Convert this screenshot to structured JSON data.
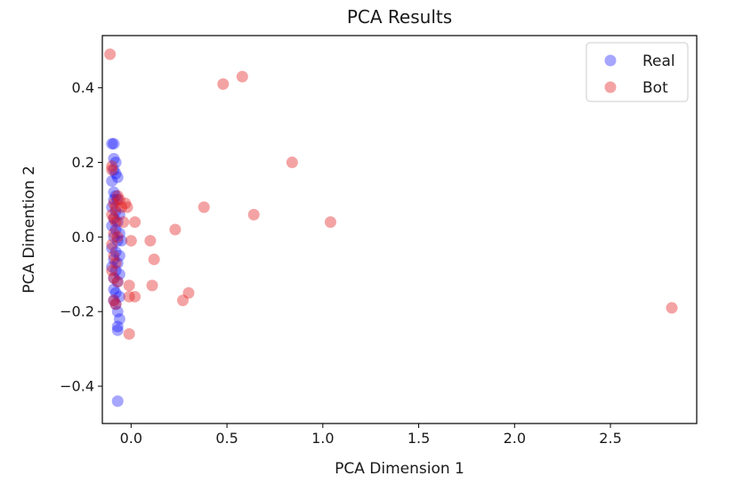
{
  "chart_data": {
    "type": "scatter",
    "title": "PCA Results",
    "xlabel": "PCA Dimension 1",
    "ylabel": "PCA Dimention 2",
    "xlim": [
      -0.15,
      2.95
    ],
    "ylim": [
      -0.5,
      0.54
    ],
    "xticks": [
      {
        "value": 0.0,
        "label": "0.0"
      },
      {
        "value": 0.5,
        "label": "0.5"
      },
      {
        "value": 1.0,
        "label": "1.0"
      },
      {
        "value": 1.5,
        "label": "1.5"
      },
      {
        "value": 2.0,
        "label": "2.0"
      },
      {
        "value": 2.5,
        "label": "2.5"
      }
    ],
    "yticks": [
      {
        "value": -0.4,
        "label": "−0.4"
      },
      {
        "value": -0.2,
        "label": "−0.2"
      },
      {
        "value": 0.0,
        "label": "0.0"
      },
      {
        "value": 0.2,
        "label": "0.2"
      },
      {
        "value": 0.4,
        "label": "0.4"
      }
    ],
    "grid": false,
    "legend_position": "top-right",
    "series": [
      {
        "name": "Real",
        "color": "#0000ff",
        "opacity": 0.35,
        "points": [
          [
            -0.1,
            0.25
          ],
          [
            -0.09,
            0.25
          ],
          [
            -0.09,
            0.21
          ],
          [
            -0.08,
            0.2
          ],
          [
            -0.09,
            0.18
          ],
          [
            -0.08,
            0.17
          ],
          [
            -0.07,
            0.16
          ],
          [
            -0.1,
            0.15
          ],
          [
            -0.09,
            0.12
          ],
          [
            -0.08,
            0.11
          ],
          [
            -0.07,
            0.1
          ],
          [
            -0.09,
            0.1
          ],
          [
            -0.1,
            0.08
          ],
          [
            -0.08,
            0.07
          ],
          [
            -0.06,
            0.06
          ],
          [
            -0.09,
            0.05
          ],
          [
            -0.07,
            0.04
          ],
          [
            -0.1,
            0.03
          ],
          [
            -0.08,
            0.02
          ],
          [
            -0.06,
            0.01
          ],
          [
            -0.09,
            0.0
          ],
          [
            -0.07,
            -0.01
          ],
          [
            -0.05,
            -0.01
          ],
          [
            -0.1,
            -0.03
          ],
          [
            -0.08,
            -0.04
          ],
          [
            -0.06,
            -0.05
          ],
          [
            -0.09,
            -0.06
          ],
          [
            -0.07,
            -0.07
          ],
          [
            -0.1,
            -0.08
          ],
          [
            -0.08,
            -0.09
          ],
          [
            -0.06,
            -0.1
          ],
          [
            -0.09,
            -0.11
          ],
          [
            -0.07,
            -0.12
          ],
          [
            -0.09,
            -0.14
          ],
          [
            -0.08,
            -0.15
          ],
          [
            -0.06,
            -0.16
          ],
          [
            -0.09,
            -0.17
          ],
          [
            -0.08,
            -0.18
          ],
          [
            -0.07,
            -0.2
          ],
          [
            -0.06,
            -0.22
          ],
          [
            -0.07,
            -0.24
          ],
          [
            -0.07,
            -0.25
          ],
          [
            -0.07,
            -0.44
          ]
        ]
      },
      {
        "name": "Bot",
        "color": "#e41a1c",
        "opacity": 0.4,
        "points": [
          [
            -0.11,
            0.49
          ],
          [
            0.48,
            0.41
          ],
          [
            0.58,
            0.43
          ],
          [
            0.84,
            0.2
          ],
          [
            0.38,
            0.08
          ],
          [
            0.64,
            0.06
          ],
          [
            1.04,
            0.04
          ],
          [
            0.23,
            0.02
          ],
          [
            2.82,
            -0.19
          ],
          [
            -0.1,
            0.19
          ],
          [
            -0.1,
            0.18
          ],
          [
            -0.09,
            0.09
          ],
          [
            -0.08,
            0.08
          ],
          [
            -0.07,
            0.11
          ],
          [
            -0.06,
            0.1
          ],
          [
            -0.05,
            0.08
          ],
          [
            -0.03,
            0.09
          ],
          [
            -0.02,
            0.08
          ],
          [
            -0.1,
            0.06
          ],
          [
            -0.09,
            0.05
          ],
          [
            -0.08,
            0.04
          ],
          [
            0.02,
            0.04
          ],
          [
            -0.04,
            0.04
          ],
          [
            -0.09,
            0.01
          ],
          [
            -0.07,
            0.0
          ],
          [
            0.0,
            -0.01
          ],
          [
            -0.1,
            -0.02
          ],
          [
            0.1,
            -0.01
          ],
          [
            0.12,
            -0.06
          ],
          [
            -0.09,
            -0.05
          ],
          [
            -0.08,
            -0.07
          ],
          [
            -0.1,
            -0.09
          ],
          [
            -0.09,
            -0.11
          ],
          [
            -0.07,
            -0.12
          ],
          [
            -0.01,
            -0.13
          ],
          [
            0.11,
            -0.13
          ],
          [
            0.3,
            -0.15
          ],
          [
            0.02,
            -0.16
          ],
          [
            -0.01,
            -0.16
          ],
          [
            0.27,
            -0.17
          ],
          [
            -0.09,
            -0.17
          ],
          [
            -0.08,
            -0.18
          ],
          [
            -0.01,
            -0.26
          ]
        ]
      }
    ]
  }
}
